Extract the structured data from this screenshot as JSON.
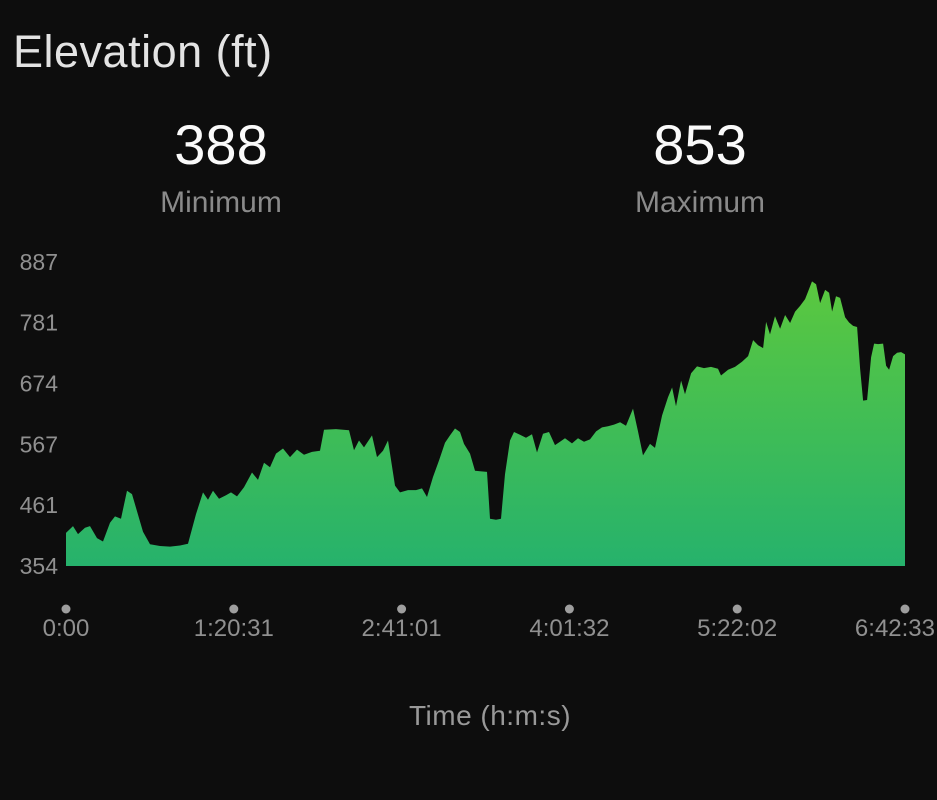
{
  "header": {
    "title": "Elevation (ft)"
  },
  "stats": [
    {
      "value": "388",
      "label": "Minimum"
    },
    {
      "value": "853",
      "label": "Maximum"
    }
  ],
  "colors": {
    "background": "#0d0d0d",
    "gradient_top": "#5bc83f",
    "gradient_bottom": "#26b26c",
    "axis_text": "#909090",
    "tick_dot": "#9e9e9e",
    "title_text": "#e3e3e3",
    "stat_value_text": "#fafafa",
    "stat_label_text": "#8a8a8a"
  },
  "chart_data": {
    "type": "area",
    "title": "Elevation (ft)",
    "series_name": "Elevation",
    "unit": "ft",
    "xlabel": "Time (h:m:s)",
    "ylabel": "",
    "ylim": [
      354,
      887
    ],
    "grid": false,
    "legend": "none",
    "min_value": 388,
    "max_value": 853,
    "y_ticks": [
      354,
      461,
      567,
      674,
      781,
      887
    ],
    "x_ticks": [
      {
        "label": "0:00",
        "t": 0
      },
      {
        "label": "1:20:31",
        "t": 4831
      },
      {
        "label": "2:41:01",
        "t": 9661
      },
      {
        "label": "4:01:32",
        "t": 14492
      },
      {
        "label": "5:22:02",
        "t": 19322
      },
      {
        "label": "6:42:33",
        "t": 24153
      }
    ],
    "points": [
      [
        0,
        412
      ],
      [
        202,
        424
      ],
      [
        345,
        410
      ],
      [
        547,
        421
      ],
      [
        691,
        424
      ],
      [
        892,
        403
      ],
      [
        1065,
        397
      ],
      [
        1267,
        430
      ],
      [
        1411,
        441
      ],
      [
        1583,
        437
      ],
      [
        1756,
        486
      ],
      [
        1900,
        480
      ],
      [
        2044,
        450
      ],
      [
        2217,
        414
      ],
      [
        2418,
        392
      ],
      [
        2706,
        389
      ],
      [
        2994,
        388
      ],
      [
        3282,
        390
      ],
      [
        3512,
        393
      ],
      [
        3742,
        445
      ],
      [
        3944,
        483
      ],
      [
        4088,
        470
      ],
      [
        4232,
        486
      ],
      [
        4404,
        472
      ],
      [
        4606,
        478
      ],
      [
        4750,
        483
      ],
      [
        4923,
        476
      ],
      [
        5124,
        492
      ],
      [
        5355,
        518
      ],
      [
        5527,
        505
      ],
      [
        5700,
        535
      ],
      [
        5873,
        527
      ],
      [
        6046,
        551
      ],
      [
        6247,
        560
      ],
      [
        6449,
        545
      ],
      [
        6650,
        558
      ],
      [
        6852,
        549
      ],
      [
        7082,
        554
      ],
      [
        7312,
        556
      ],
      [
        7427,
        593
      ],
      [
        7773,
        594
      ],
      [
        8147,
        592
      ],
      [
        8291,
        557
      ],
      [
        8435,
        574
      ],
      [
        8579,
        562
      ],
      [
        8809,
        583
      ],
      [
        8953,
        545
      ],
      [
        9126,
        556
      ],
      [
        9270,
        574
      ],
      [
        9471,
        495
      ],
      [
        9615,
        483
      ],
      [
        9846,
        487
      ],
      [
        10076,
        487
      ],
      [
        10249,
        490
      ],
      [
        10392,
        475
      ],
      [
        10565,
        510
      ],
      [
        10738,
        539
      ],
      [
        10911,
        570
      ],
      [
        11055,
        583
      ],
      [
        11199,
        595
      ],
      [
        11343,
        589
      ],
      [
        11458,
        568
      ],
      [
        11631,
        551
      ],
      [
        11775,
        521
      ],
      [
        11919,
        520
      ],
      [
        12120,
        519
      ],
      [
        12207,
        437
      ],
      [
        12379,
        435
      ],
      [
        12523,
        437
      ],
      [
        12639,
        515
      ],
      [
        12783,
        574
      ],
      [
        12898,
        589
      ],
      [
        13071,
        584
      ],
      [
        13243,
        579
      ],
      [
        13416,
        585
      ],
      [
        13560,
        553
      ],
      [
        13733,
        586
      ],
      [
        13905,
        589
      ],
      [
        14078,
        566
      ],
      [
        14222,
        572
      ],
      [
        14366,
        578
      ],
      [
        14568,
        569
      ],
      [
        14740,
        578
      ],
      [
        14913,
        572
      ],
      [
        15086,
        576
      ],
      [
        15259,
        590
      ],
      [
        15431,
        597
      ],
      [
        15604,
        599
      ],
      [
        15777,
        602
      ],
      [
        15950,
        606
      ],
      [
        16122,
        600
      ],
      [
        16324,
        630
      ],
      [
        16468,
        590
      ],
      [
        16612,
        548
      ],
      [
        16813,
        568
      ],
      [
        16957,
        561
      ],
      [
        17159,
        618
      ],
      [
        17331,
        650
      ],
      [
        17447,
        667
      ],
      [
        17562,
        634
      ],
      [
        17706,
        679
      ],
      [
        17821,
        655
      ],
      [
        17994,
        692
      ],
      [
        18166,
        704
      ],
      [
        18368,
        701
      ],
      [
        18569,
        703
      ],
      [
        18771,
        700
      ],
      [
        18857,
        688
      ],
      [
        19059,
        698
      ],
      [
        19260,
        703
      ],
      [
        19462,
        712
      ],
      [
        19635,
        722
      ],
      [
        19779,
        750
      ],
      [
        19923,
        741
      ],
      [
        20067,
        736
      ],
      [
        20153,
        782
      ],
      [
        20268,
        760
      ],
      [
        20412,
        792
      ],
      [
        20556,
        770
      ],
      [
        20700,
        794
      ],
      [
        20844,
        780
      ],
      [
        20988,
        800
      ],
      [
        21132,
        810
      ],
      [
        21276,
        822
      ],
      [
        21362,
        835
      ],
      [
        21477,
        853
      ],
      [
        21593,
        848
      ],
      [
        21708,
        815
      ],
      [
        21852,
        838
      ],
      [
        21967,
        833
      ],
      [
        22053,
        800
      ],
      [
        22168,
        827
      ],
      [
        22284,
        824
      ],
      [
        22428,
        790
      ],
      [
        22543,
        781
      ],
      [
        22658,
        775
      ],
      [
        22773,
        773
      ],
      [
        22860,
        700
      ],
      [
        22946,
        644
      ],
      [
        23061,
        645
      ],
      [
        23176,
        720
      ],
      [
        23263,
        744
      ],
      [
        23378,
        743
      ],
      [
        23522,
        744
      ],
      [
        23608,
        705
      ],
      [
        23694,
        698
      ],
      [
        23809,
        722
      ],
      [
        23925,
        728
      ],
      [
        24040,
        729
      ],
      [
        24153,
        725
      ]
    ]
  }
}
